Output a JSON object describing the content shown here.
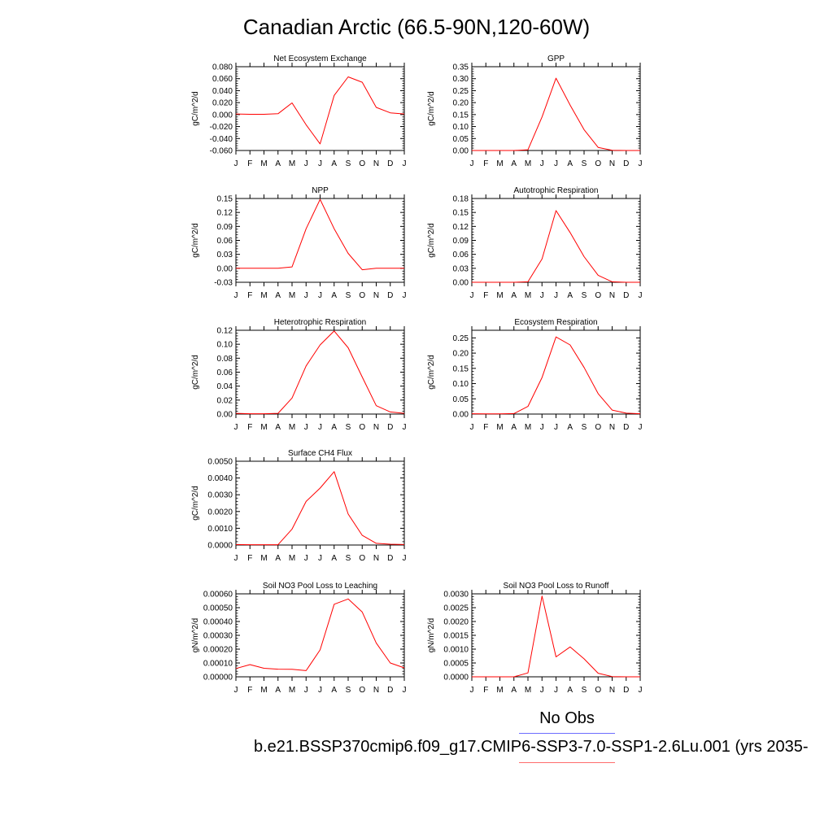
{
  "page": {
    "title": "Canadian Arctic (66.5-90N,120-60W)",
    "legend": {
      "obs_label": "No Obs",
      "case_label": "b.e21.BSSP370cmip6.f09_g17.CMIP6-SSP3-7.0-SSP1-2.6Lu.001 (yrs 2035-",
      "obs_color": "#6d6dff",
      "case_color": "#ff6d6d"
    }
  },
  "chart_data": [
    {
      "type": "line",
      "title": "Net Ecosystem Exchange",
      "ylabel": "gC/m^2/d",
      "categories": [
        "J",
        "F",
        "M",
        "A",
        "M",
        "J",
        "J",
        "A",
        "S",
        "O",
        "N",
        "D",
        "J"
      ],
      "ylim": [
        -0.06,
        0.08
      ],
      "yticks": [
        "-0.060",
        "-0.040",
        "-0.020",
        "0.000",
        "0.020",
        "0.040",
        "0.060",
        "0.080"
      ],
      "series": [
        {
          "values": [
            0.001,
            0.0005,
            0.0005,
            0.0015,
            0.0195,
            -0.017,
            -0.049,
            0.032,
            0.063,
            0.054,
            0.012,
            0.003,
            0.001
          ],
          "color": "#ff0000"
        }
      ],
      "grid": false
    },
    {
      "type": "line",
      "title": "GPP",
      "ylabel": "gC/m^2/d",
      "categories": [
        "J",
        "F",
        "M",
        "A",
        "M",
        "J",
        "J",
        "A",
        "S",
        "O",
        "N",
        "D",
        "J"
      ],
      "ylim": [
        0,
        0.35
      ],
      "yticks": [
        "0.00",
        "0.05",
        "0.10",
        "0.15",
        "0.20",
        "0.25",
        "0.30",
        "0.35"
      ],
      "series": [
        {
          "values": [
            0,
            0,
            0,
            0,
            0.003,
            0.14,
            0.302,
            0.19,
            0.087,
            0.013,
            0.001,
            0,
            0
          ],
          "color": "#ff0000"
        }
      ],
      "grid": false
    },
    {
      "type": "line",
      "title": "NPP",
      "ylabel": "gC/m^2/d",
      "categories": [
        "J",
        "F",
        "M",
        "A",
        "M",
        "J",
        "J",
        "A",
        "S",
        "O",
        "N",
        "D",
        "J"
      ],
      "ylim": [
        -0.03,
        0.15
      ],
      "yticks": [
        "-0.03",
        "0.00",
        "0.03",
        "0.06",
        "0.09",
        "0.12",
        "0.15"
      ],
      "series": [
        {
          "values": [
            0,
            0,
            0,
            0,
            0.003,
            0.085,
            0.148,
            0.085,
            0.032,
            -0.003,
            0,
            0,
            0
          ],
          "color": "#ff0000"
        }
      ],
      "grid": false
    },
    {
      "type": "line",
      "title": "Autotrophic Respiration",
      "ylabel": "gC/m^2/d",
      "categories": [
        "J",
        "F",
        "M",
        "A",
        "M",
        "J",
        "J",
        "A",
        "S",
        "O",
        "N",
        "D",
        "J"
      ],
      "ylim": [
        0,
        0.18
      ],
      "yticks": [
        "0.00",
        "0.03",
        "0.06",
        "0.09",
        "0.12",
        "0.15",
        "0.18"
      ],
      "series": [
        {
          "values": [
            0,
            0,
            0,
            0,
            0.001,
            0.05,
            0.154,
            0.107,
            0.055,
            0.015,
            0.001,
            0,
            0
          ],
          "color": "#ff0000"
        }
      ],
      "grid": false
    },
    {
      "type": "line",
      "title": "Heterotrophic Respiration",
      "ylabel": "gC/m^2/d",
      "categories": [
        "J",
        "F",
        "M",
        "A",
        "M",
        "J",
        "J",
        "A",
        "S",
        "O",
        "N",
        "D",
        "J"
      ],
      "ylim": [
        0,
        0.12
      ],
      "yticks": [
        "0.00",
        "0.02",
        "0.04",
        "0.06",
        "0.08",
        "0.10",
        "0.12"
      ],
      "series": [
        {
          "values": [
            0.001,
            0.0005,
            0.0005,
            0.001,
            0.023,
            0.069,
            0.099,
            0.119,
            0.095,
            0.053,
            0.012,
            0.003,
            0.001
          ],
          "color": "#ff0000"
        }
      ],
      "grid": false
    },
    {
      "type": "line",
      "title": "Ecosystem Respiration",
      "ylabel": "gC/m^2/d",
      "categories": [
        "J",
        "F",
        "M",
        "A",
        "M",
        "J",
        "J",
        "A",
        "S",
        "O",
        "N",
        "D",
        "J"
      ],
      "ylim": [
        0,
        0.275
      ],
      "yticks": [
        "0.00",
        "0.05",
        "0.10",
        "0.15",
        "0.20",
        "0.25"
      ],
      "series": [
        {
          "values": [
            0.001,
            0.0005,
            0.0005,
            0.0015,
            0.025,
            0.12,
            0.253,
            0.227,
            0.153,
            0.067,
            0.013,
            0.003,
            0.001
          ],
          "color": "#ff0000"
        }
      ],
      "grid": false
    },
    {
      "type": "line",
      "title": "Surface CH4 Flux",
      "ylabel": "gC/m^2/d",
      "categories": [
        "J",
        "F",
        "M",
        "A",
        "M",
        "J",
        "J",
        "A",
        "S",
        "O",
        "N",
        "D",
        "J"
      ],
      "ylim": [
        0,
        0.005
      ],
      "yticks": [
        "0.0000",
        "0.0010",
        "0.0020",
        "0.0030",
        "0.0040",
        "0.0050"
      ],
      "series": [
        {
          "values": [
            3e-05,
            2e-05,
            2e-05,
            2e-05,
            0.00095,
            0.0026,
            0.0034,
            0.00438,
            0.00185,
            0.00058,
            0.0001,
            5e-05,
            3e-05
          ],
          "color": "#ff0000"
        }
      ],
      "grid": false
    },
    {
      "type": "line",
      "title": "Soil NO3 Pool Loss to Leaching",
      "ylabel": "gN/m^2/d",
      "categories": [
        "J",
        "F",
        "M",
        "A",
        "M",
        "J",
        "J",
        "A",
        "S",
        "O",
        "N",
        "D",
        "J"
      ],
      "ylim": [
        0,
        0.0006
      ],
      "yticks": [
        "0.00000",
        "0.00010",
        "0.00020",
        "0.00030",
        "0.00040",
        "0.00050",
        "0.00060"
      ],
      "series": [
        {
          "values": [
            6e-05,
            8.8e-05,
            6.2e-05,
            5.5e-05,
            5.4e-05,
            4.5e-05,
            0.000195,
            0.000525,
            0.000563,
            0.000468,
            0.000245,
            0.0001,
            6.5e-05
          ],
          "color": "#ff0000"
        }
      ],
      "grid": false
    },
    {
      "type": "line",
      "title": "Soil NO3 Pool Loss to Runoff",
      "ylabel": "gN/m^2/d",
      "categories": [
        "J",
        "F",
        "M",
        "A",
        "M",
        "J",
        "J",
        "A",
        "S",
        "O",
        "N",
        "D",
        "J"
      ],
      "ylim": [
        0,
        0.003
      ],
      "yticks": [
        "0.0000",
        "0.0005",
        "0.0010",
        "0.0015",
        "0.0020",
        "0.0025",
        "0.0030"
      ],
      "series": [
        {
          "values": [
            0,
            0,
            0,
            0,
            0.00014,
            0.00292,
            0.00072,
            0.00108,
            0.00065,
            0.00013,
            1e-05,
            0,
            0
          ],
          "color": "#ff0000"
        }
      ],
      "grid": false
    }
  ]
}
